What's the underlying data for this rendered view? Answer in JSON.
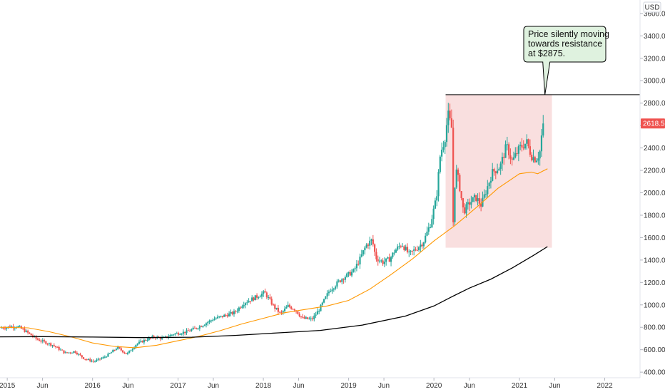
{
  "chart_data": {
    "type": "candlestick",
    "currency": "USD",
    "y_axis": {
      "min": 350,
      "max": 3720,
      "ticks": [
        400,
        600,
        800,
        1000,
        1200,
        1400,
        1600,
        1800,
        2000,
        2200,
        2400,
        2600,
        2800,
        3000,
        3200,
        3400,
        3600
      ],
      "tick_labels": [
        "400.00",
        "600.00",
        "800.00",
        "1000.00",
        "1200.00",
        "1400.00",
        "1600.00",
        "1800.00",
        "2000.00",
        "2200.00",
        "2400.00",
        "2600.00",
        "2800.00",
        "3000.00",
        "3200.00",
        "3400.00",
        "3600.00"
      ],
      "position": "right"
    },
    "x_axis": {
      "start": "2014-12-01",
      "end": "2022-06-01",
      "ticks": [
        {
          "date": "2015-01-01",
          "label": "2015"
        },
        {
          "date": "2015-06-01",
          "label": "Jun"
        },
        {
          "date": "2016-01-01",
          "label": "2016"
        },
        {
          "date": "2016-06-01",
          "label": "Jun"
        },
        {
          "date": "2017-01-01",
          "label": "2017"
        },
        {
          "date": "2017-06-01",
          "label": "Jun"
        },
        {
          "date": "2018-01-01",
          "label": "2018"
        },
        {
          "date": "2018-06-01",
          "label": "Jun"
        },
        {
          "date": "2019-01-01",
          "label": "2019"
        },
        {
          "date": "2019-06-01",
          "label": "Jun"
        },
        {
          "date": "2020-01-01",
          "label": "2020"
        },
        {
          "date": "2020-06-01",
          "label": "Jun"
        },
        {
          "date": "2021-01-01",
          "label": "2021"
        },
        {
          "date": "2021-06-01",
          "label": "Jun"
        },
        {
          "date": "2022-01-01",
          "label": "2022"
        }
      ]
    },
    "price_anchors": [
      [
        "2014-12-05",
        795
      ],
      [
        "2015-02-15",
        810
      ],
      [
        "2015-03-20",
        770
      ],
      [
        "2015-05-15",
        690
      ],
      [
        "2015-07-20",
        640
      ],
      [
        "2015-09-10",
        570
      ],
      [
        "2015-10-20",
        585
      ],
      [
        "2015-11-30",
        520
      ],
      [
        "2016-01-10",
        495
      ],
      [
        "2016-02-20",
        530
      ],
      [
        "2016-03-15",
        560
      ],
      [
        "2016-04-20",
        620
      ],
      [
        "2016-05-30",
        560
      ],
      [
        "2016-07-10",
        650
      ],
      [
        "2016-08-20",
        690
      ],
      [
        "2016-09-25",
        715
      ],
      [
        "2016-11-01",
        700
      ],
      [
        "2016-12-15",
        740
      ],
      [
        "2017-02-10",
        760
      ],
      [
        "2017-04-10",
        810
      ],
      [
        "2017-06-01",
        870
      ],
      [
        "2017-07-15",
        900
      ],
      [
        "2017-09-01",
        930
      ],
      [
        "2017-10-15",
        1020
      ],
      [
        "2017-11-15",
        1050
      ],
      [
        "2018-01-10",
        1110
      ],
      [
        "2018-02-20",
        980
      ],
      [
        "2018-03-20",
        920
      ],
      [
        "2018-04-20",
        990
      ],
      [
        "2018-05-20",
        960
      ],
      [
        "2018-06-20",
        880
      ],
      [
        "2018-08-01",
        870
      ],
      [
        "2018-09-01",
        960
      ],
      [
        "2018-10-15",
        1130
      ],
      [
        "2018-12-10",
        1240
      ],
      [
        "2019-01-25",
        1300
      ],
      [
        "2019-02-20",
        1400
      ],
      [
        "2019-03-20",
        1530
      ],
      [
        "2019-04-15",
        1580
      ],
      [
        "2019-05-01",
        1420
      ],
      [
        "2019-06-01",
        1380
      ],
      [
        "2019-06-30",
        1410
      ],
      [
        "2019-07-20",
        1480
      ],
      [
        "2019-08-20",
        1545
      ],
      [
        "2019-09-20",
        1450
      ],
      [
        "2019-10-20",
        1500
      ],
      [
        "2019-11-20",
        1560
      ],
      [
        "2019-12-20",
        1720
      ],
      [
        "2020-01-15",
        1950
      ],
      [
        "2020-02-01",
        2350
      ],
      [
        "2020-02-20",
        2480
      ],
      [
        "2020-03-05",
        2700
      ],
      [
        "2020-03-20",
        2580
      ],
      [
        "2020-03-28",
        1620
      ],
      [
        "2020-04-05",
        2230
      ],
      [
        "2020-04-20",
        2100
      ],
      [
        "2020-05-10",
        1830
      ],
      [
        "2020-06-05",
        1910
      ],
      [
        "2020-07-01",
        1960
      ],
      [
        "2020-07-25",
        1890
      ],
      [
        "2020-08-20",
        2050
      ],
      [
        "2020-09-10",
        2180
      ],
      [
        "2020-10-15",
        2240
      ],
      [
        "2020-11-10",
        2420
      ],
      [
        "2020-12-05",
        2280
      ],
      [
        "2021-01-05",
        2400
      ],
      [
        "2021-02-05",
        2450
      ],
      [
        "2021-02-25",
        2330
      ],
      [
        "2021-03-15",
        2300
      ],
      [
        "2021-04-01",
        2350
      ],
      [
        "2021-04-15",
        2618.5
      ]
    ],
    "series": [
      {
        "kind": "moving_average",
        "color": "#ff9800",
        "points": [
          [
            "2014-12-01",
            800
          ],
          [
            "2015-04-01",
            795
          ],
          [
            "2015-07-01",
            760
          ],
          [
            "2015-10-01",
            715
          ],
          [
            "2016-01-01",
            660
          ],
          [
            "2016-04-01",
            630
          ],
          [
            "2016-07-01",
            618
          ],
          [
            "2016-10-01",
            640
          ],
          [
            "2017-01-01",
            680
          ],
          [
            "2017-04-01",
            720
          ],
          [
            "2017-07-01",
            770
          ],
          [
            "2017-10-01",
            830
          ],
          [
            "2018-01-01",
            880
          ],
          [
            "2018-04-01",
            930
          ],
          [
            "2018-07-01",
            960
          ],
          [
            "2018-10-01",
            990
          ],
          [
            "2019-01-01",
            1040
          ],
          [
            "2019-04-01",
            1140
          ],
          [
            "2019-07-01",
            1270
          ],
          [
            "2019-10-01",
            1410
          ],
          [
            "2020-01-01",
            1570
          ],
          [
            "2020-04-01",
            1710
          ],
          [
            "2020-07-01",
            1870
          ],
          [
            "2020-10-01",
            2040
          ],
          [
            "2021-01-01",
            2170
          ],
          [
            "2021-02-20",
            2185
          ],
          [
            "2021-03-20",
            2170
          ],
          [
            "2021-05-01",
            2215
          ]
        ]
      },
      {
        "kind": "moving_average",
        "color": "#000000",
        "points": [
          [
            "2014-12-01",
            715
          ],
          [
            "2015-06-01",
            717
          ],
          [
            "2016-01-01",
            713
          ],
          [
            "2016-08-01",
            708
          ],
          [
            "2017-03-01",
            712
          ],
          [
            "2017-09-01",
            728
          ],
          [
            "2018-03-01",
            750
          ],
          [
            "2018-09-01",
            772
          ],
          [
            "2019-03-01",
            820
          ],
          [
            "2019-09-01",
            900
          ],
          [
            "2020-01-01",
            990
          ],
          [
            "2020-03-15",
            1070
          ],
          [
            "2020-06-01",
            1150
          ],
          [
            "2020-09-01",
            1230
          ],
          [
            "2020-12-01",
            1330
          ],
          [
            "2021-03-01",
            1440
          ],
          [
            "2021-05-01",
            1520
          ]
        ]
      }
    ],
    "resistance_line": {
      "value": 2875,
      "from": "2020-02-20",
      "to": "2022-06-01",
      "color": "#000000"
    },
    "range_box": {
      "from": "2020-02-20",
      "to": "2021-05-20",
      "low": 1510,
      "high": 2875,
      "color": "#f8d7d7"
    },
    "last_price": {
      "value": "2618.50",
      "raw": 2618.5,
      "color": "#ef5350"
    },
    "candle_colors": {
      "up": "#26a69a",
      "down": "#ef5350"
    },
    "annotation": {
      "lines": [
        "Price silently moving",
        "towards resistance",
        "at $2875."
      ],
      "target_date": "2021-04-20",
      "target_value": 2875,
      "fill": "#dff2df",
      "border": "#000000"
    }
  }
}
